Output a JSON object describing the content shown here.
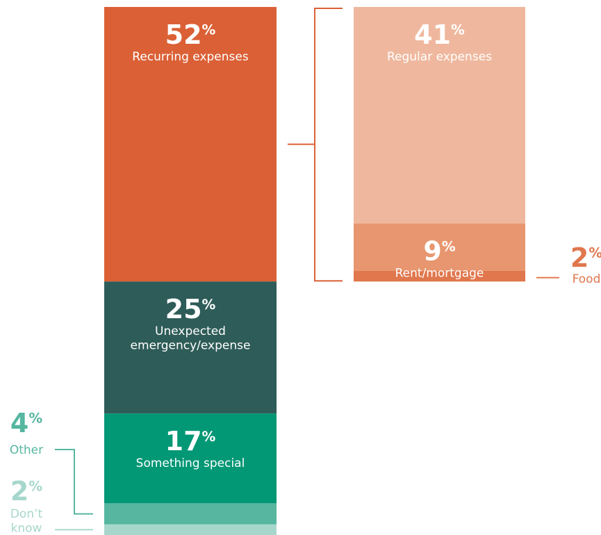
{
  "chart_data": {
    "type": "stacked-bar",
    "total_unit": "%",
    "main_bar": {
      "segments": [
        {
          "name": "Recurring expenses",
          "value": 52,
          "color": "#db6036",
          "text_color": "#ffffff"
        },
        {
          "name": "Unexpected emergency/expense",
          "value": 25,
          "color": "#2e5c58",
          "text_color": "#ffffff"
        },
        {
          "name": "Something special",
          "value": 17,
          "color": "#029775",
          "text_color": "#ffffff"
        },
        {
          "name": "Other",
          "value": 4,
          "color": "#56b6a0",
          "text_color": "#56b6a0"
        },
        {
          "name": "Don’t know",
          "value": 2,
          "color": "#a7d7cc",
          "text_color": "#a7d7cc"
        }
      ]
    },
    "breakdown_bar": {
      "of": "Recurring expenses",
      "segments": [
        {
          "name": "Regular expenses",
          "value": 41,
          "color": "#efb89e",
          "text_color": "#ffffff"
        },
        {
          "name": "Rent/mortgage",
          "value": 9,
          "color": "#e8966f",
          "text_color": "#ffffff"
        },
        {
          "name": "Food",
          "value": 2,
          "color": "#e0774d",
          "text_color": "#e0774d"
        }
      ]
    },
    "bracket_color": "#db6036"
  }
}
